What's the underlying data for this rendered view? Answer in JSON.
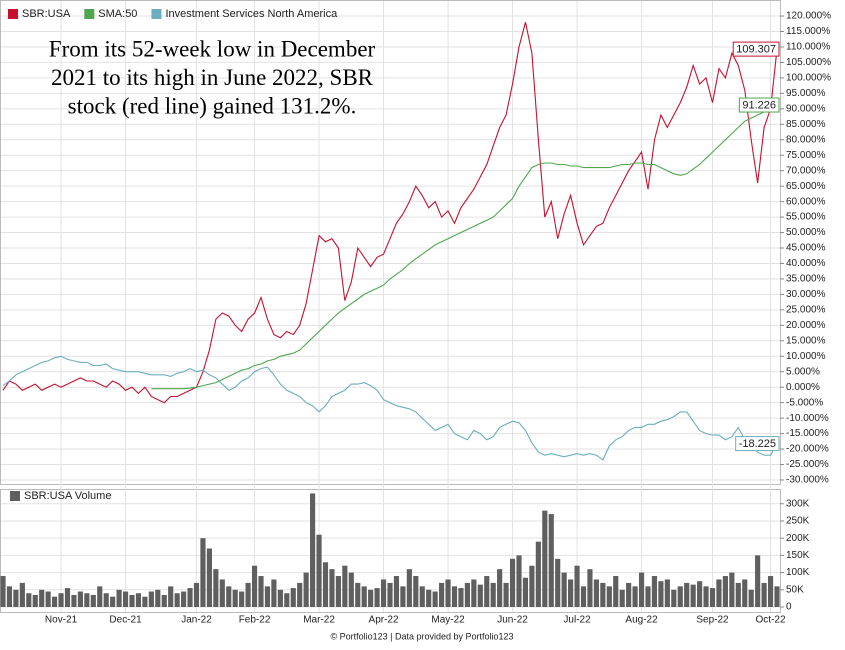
{
  "chart_data": [
    {
      "type": "line",
      "annotation": [
        "From its 52-week low in December",
        "2021 to its high in June 2022, SBR",
        "stock (red line) gained 131.2%."
      ],
      "legend": "upper left",
      "grid": true,
      "end_labels": true,
      "x": [
        0,
        1,
        2,
        3,
        4,
        5,
        6,
        7,
        8,
        9,
        10,
        11,
        12,
        13,
        14,
        15,
        16,
        17,
        18,
        19,
        20,
        21,
        22,
        23,
        24,
        25,
        26,
        27,
        28,
        29,
        30,
        31,
        32,
        33,
        34,
        35,
        36,
        37,
        38,
        39,
        40,
        41,
        42,
        43,
        44,
        45,
        46,
        47,
        48,
        49,
        50,
        51,
        52,
        53,
        54,
        55,
        56,
        57,
        58,
        59,
        60,
        61,
        62,
        63,
        64,
        65,
        66,
        67,
        68,
        69,
        70,
        71,
        72,
        73,
        74,
        75,
        76,
        77,
        78,
        79,
        80,
        81,
        82,
        83,
        84,
        85,
        86,
        87,
        88,
        89,
        90,
        91,
        92,
        93,
        94,
        95,
        96,
        97,
        98,
        99,
        100,
        101,
        102,
        103,
        104,
        105,
        106,
        107,
        108,
        109,
        110,
        111,
        112,
        113,
        114,
        115,
        116,
        117,
        118,
        119,
        120
      ],
      "xlim": [
        0,
        120
      ],
      "ylim": [
        -31.3,
        122.6
      ],
      "yticks": [
        {
          "value": 120,
          "label": "120.000%"
        },
        {
          "value": 115,
          "label": "115.000%"
        },
        {
          "value": 110,
          "label": "110.000%"
        },
        {
          "value": 105,
          "label": "105.000%"
        },
        {
          "value": 100,
          "label": "100.000%"
        },
        {
          "value": 95,
          "label": "95.000%"
        },
        {
          "value": 90,
          "label": "90.000%"
        },
        {
          "value": 85,
          "label": "85.000%"
        },
        {
          "value": 80,
          "label": "80.000%"
        },
        {
          "value": 75,
          "label": "75.000%"
        },
        {
          "value": 70,
          "label": "70.000%"
        },
        {
          "value": 65,
          "label": "65.000%"
        },
        {
          "value": 60,
          "label": "60.000%"
        },
        {
          "value": 55,
          "label": "55.000%"
        },
        {
          "value": 50,
          "label": "50.000%"
        },
        {
          "value": 45,
          "label": "45.000%"
        },
        {
          "value": 40,
          "label": "40.000%"
        },
        {
          "value": 35,
          "label": "35.000%"
        },
        {
          "value": 30,
          "label": "30.000%"
        },
        {
          "value": 25,
          "label": "25.000%"
        },
        {
          "value": 20,
          "label": "20.000%"
        },
        {
          "value": 15,
          "label": "15.000%"
        },
        {
          "value": 10,
          "label": "10.000%"
        },
        {
          "value": 5,
          "label": "5.000%"
        },
        {
          "value": 0,
          "label": "0.000%"
        },
        {
          "value": -5,
          "label": "-5.000%"
        },
        {
          "value": -10,
          "label": "-10.000%"
        },
        {
          "value": -15,
          "label": "-15.000%"
        },
        {
          "value": -20,
          "label": "-20.000%"
        },
        {
          "value": -25,
          "label": "-25.000%"
        },
        {
          "value": -30,
          "label": "-30.000%"
        }
      ],
      "series": [
        {
          "name": "SBR:USA",
          "color": "#c8102e",
          "values": [
            -1,
            2,
            1,
            -1,
            0,
            1,
            -1,
            0,
            1,
            0,
            1,
            2,
            3,
            2,
            2,
            1,
            0,
            2,
            1,
            -1,
            0,
            -2,
            0,
            -3,
            -4,
            -5,
            -3,
            -3,
            -2,
            -1,
            0,
            5,
            12,
            22,
            24,
            23,
            20,
            18,
            22,
            24,
            29,
            22,
            17,
            16,
            18,
            17,
            20,
            27,
            38,
            49,
            47,
            48,
            45,
            28,
            34,
            45,
            42,
            39,
            42,
            43,
            48,
            53,
            56,
            60,
            65,
            62,
            58,
            60,
            55,
            57,
            53,
            58,
            61,
            64,
            68,
            72,
            78,
            84,
            88,
            98,
            110,
            118,
            108,
            80,
            55,
            60,
            48,
            56,
            62,
            53,
            46,
            49,
            52,
            53,
            58,
            62,
            66,
            70,
            73,
            76,
            64,
            80,
            88,
            84,
            88,
            92,
            97,
            104,
            98,
            100,
            92,
            103,
            100,
            108,
            104,
            96,
            80,
            66,
            84,
            90,
            109.307
          ]
        },
        {
          "name": "SMA:50",
          "color": "#4fa64f",
          "values": [
            null,
            null,
            null,
            null,
            null,
            null,
            null,
            null,
            null,
            null,
            null,
            null,
            null,
            null,
            null,
            null,
            null,
            null,
            null,
            null,
            null,
            null,
            null,
            -0.5,
            -0.5,
            -0.5,
            -0.5,
            -0.5,
            -0.5,
            -0.3,
            0,
            0.5,
            1,
            1.5,
            2.5,
            3.5,
            4.5,
            5.5,
            6,
            7,
            7.5,
            8.5,
            9,
            10,
            10.5,
            11,
            12,
            14,
            16,
            18,
            20,
            22,
            24,
            25.5,
            27,
            28.5,
            30,
            31,
            32,
            33,
            35,
            36.5,
            38,
            40,
            41.5,
            43,
            44.5,
            46,
            47,
            48,
            49,
            50,
            51,
            52,
            53,
            54,
            55,
            57,
            59,
            61,
            65,
            68,
            71,
            72,
            72.5,
            72.5,
            72,
            72,
            71.5,
            71.5,
            71,
            71,
            71,
            71,
            71,
            71.5,
            72,
            72,
            72.5,
            72.5,
            72,
            72,
            71,
            70,
            69,
            68.5,
            69,
            70.5,
            72,
            74,
            76,
            78,
            80,
            82,
            84,
            86,
            87,
            88,
            89,
            90,
            91.226
          ]
        },
        {
          "name": "Investment Services North America",
          "color": "#6aaebf",
          "values": [
            0.5,
            2,
            4,
            5,
            6,
            7,
            8,
            8.5,
            9.5,
            10,
            9,
            8.5,
            8,
            8,
            7,
            7,
            7.5,
            6,
            5.5,
            5,
            5,
            5,
            4.5,
            4,
            4,
            4,
            3.5,
            4.5,
            5,
            6,
            5,
            5.5,
            4,
            3,
            1,
            -1,
            0,
            2,
            3,
            5,
            6,
            6.5,
            4,
            1,
            -1,
            -2,
            -3,
            -5,
            -6,
            -8,
            -6,
            -3,
            -2,
            -1,
            1,
            1,
            1.5,
            0.5,
            -1,
            -4,
            -5,
            -6,
            -6.5,
            -7,
            -8,
            -10,
            -12,
            -14,
            -13,
            -12,
            -15,
            -16,
            -17,
            -14,
            -15,
            -17,
            -16,
            -13,
            -12,
            -11,
            -11.5,
            -14,
            -18,
            -21,
            -22,
            -21.5,
            -22,
            -22.5,
            -22,
            -21.5,
            -22,
            -21.5,
            -22,
            -23.5,
            -19,
            -17,
            -16,
            -14,
            -13,
            -13,
            -12,
            -12,
            -11,
            -10.5,
            -9.5,
            -8,
            -8,
            -11,
            -14,
            -15,
            -15.5,
            -15.5,
            -17,
            -16,
            -13,
            -17,
            -19,
            -21,
            -22,
            -22,
            -18.225
          ]
        }
      ]
    },
    {
      "type": "bar",
      "legend": "upper left",
      "grid": true,
      "x": [
        0,
        1,
        2,
        3,
        4,
        5,
        6,
        7,
        8,
        9,
        10,
        11,
        12,
        13,
        14,
        15,
        16,
        17,
        18,
        19,
        20,
        21,
        22,
        23,
        24,
        25,
        26,
        27,
        28,
        29,
        30,
        31,
        32,
        33,
        34,
        35,
        36,
        37,
        38,
        39,
        40,
        41,
        42,
        43,
        44,
        45,
        46,
        47,
        48,
        49,
        50,
        51,
        52,
        53,
        54,
        55,
        56,
        57,
        58,
        59,
        60,
        61,
        62,
        63,
        64,
        65,
        66,
        67,
        68,
        69,
        70,
        71,
        72,
        73,
        74,
        75,
        76,
        77,
        78,
        79,
        80,
        81,
        82,
        83,
        84,
        85,
        86,
        87,
        88,
        89,
        90,
        91,
        92,
        93,
        94,
        95,
        96,
        97,
        98,
        99,
        100,
        101,
        102,
        103,
        104,
        105,
        106,
        107,
        108,
        109,
        110,
        111,
        112,
        113,
        114,
        115,
        116,
        117,
        118,
        119,
        120
      ],
      "xlim": [
        0,
        120
      ],
      "xticks": [
        {
          "value": 9,
          "label": "Nov-21"
        },
        {
          "value": 19,
          "label": "Dec-21"
        },
        {
          "value": 30,
          "label": "Jan-22"
        },
        {
          "value": 39,
          "label": "Feb-22"
        },
        {
          "value": 49,
          "label": "Mar-22"
        },
        {
          "value": 59,
          "label": "Apr-22"
        },
        {
          "value": 69,
          "label": "May-22"
        },
        {
          "value": 79,
          "label": "Jun-22"
        },
        {
          "value": 89,
          "label": "Jul-22"
        },
        {
          "value": 99,
          "label": "Aug-22"
        },
        {
          "value": 110,
          "label": "Sep-22"
        },
        {
          "value": 119,
          "label": "Oct-22"
        }
      ],
      "ylim": [
        0,
        340000
      ],
      "yticks": [
        {
          "value": 300000,
          "label": "300K"
        },
        {
          "value": 250000,
          "label": "250K"
        },
        {
          "value": 200000,
          "label": "200K"
        },
        {
          "value": 150000,
          "label": "150K"
        },
        {
          "value": 100000,
          "label": "100K"
        },
        {
          "value": 50000,
          "label": "50K"
        },
        0
      ],
      "series": [
        {
          "name": "SBR:USA Volume",
          "color": "#5f5f5f",
          "values": [
            90000,
            60000,
            50000,
            70000,
            40000,
            35000,
            50000,
            45000,
            30000,
            40000,
            55000,
            35000,
            45000,
            40000,
            35000,
            60000,
            40000,
            30000,
            50000,
            45000,
            35000,
            40000,
            30000,
            45000,
            50000,
            35000,
            60000,
            40000,
            45000,
            55000,
            70000,
            200000,
            170000,
            110000,
            80000,
            60000,
            50000,
            45000,
            70000,
            120000,
            90000,
            60000,
            80000,
            50000,
            40000,
            55000,
            70000,
            100000,
            330000,
            210000,
            130000,
            110000,
            90000,
            120000,
            100000,
            70000,
            60000,
            50000,
            55000,
            80000,
            70000,
            90000,
            60000,
            110000,
            90000,
            60000,
            50000,
            45000,
            70000,
            80000,
            60000,
            55000,
            70000,
            80000,
            65000,
            90000,
            70000,
            110000,
            70000,
            140000,
            150000,
            85000,
            120000,
            190000,
            280000,
            270000,
            140000,
            100000,
            80000,
            120000,
            60000,
            110000,
            80000,
            70000,
            60000,
            90000,
            50000,
            70000,
            60000,
            100000,
            60000,
            90000,
            75000,
            80000,
            50000,
            60000,
            70000,
            65000,
            75000,
            60000,
            55000,
            80000,
            90000,
            100000,
            70000,
            80000,
            50000,
            150000,
            70000,
            90000,
            60000
          ]
        }
      ]
    }
  ],
  "footer": "© Portfolio123 | Data provided by Portfolio123"
}
